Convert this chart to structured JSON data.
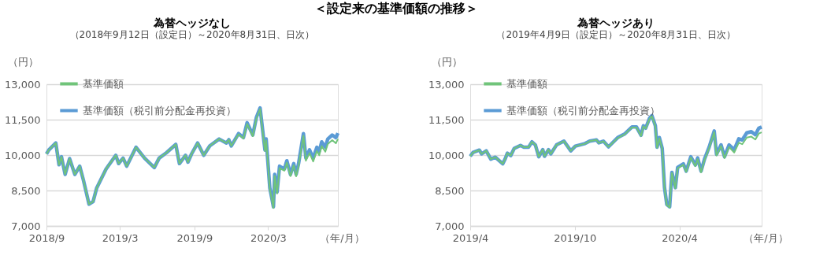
{
  "chart_data": [
    {
      "type": "line",
      "title": "為替ヘッジなし",
      "subtitle": "（2018年9月12日（設定日）～2020年8月31日、日次）",
      "ylabel": "（円）",
      "xlabel": "（年/月）",
      "annotations": [
        "＜設定来の基準価額の推移＞"
      ],
      "x": [
        "2018-09-12",
        "2018-09-18",
        "2018-10-05",
        "2018-10-13",
        "2018-10-19",
        "2018-10-28",
        "2018-11-08",
        "2018-11-21",
        "2018-12-03",
        "2018-12-12",
        "2018-12-26",
        "2019-01-05",
        "2019-01-14",
        "2019-02-06",
        "2019-03-02",
        "2019-03-09",
        "2019-03-20",
        "2019-03-29",
        "2019-04-21",
        "2019-05-12",
        "2019-06-05",
        "2019-06-17",
        "2019-07-05",
        "2019-07-28",
        "2019-08-06",
        "2019-08-21",
        "2019-08-27",
        "2019-09-05",
        "2019-09-20",
        "2019-10-05",
        "2019-10-20",
        "2019-11-12",
        "2019-11-30",
        "2019-12-06",
        "2019-12-12",
        "2019-12-30",
        "2020-01-11",
        "2020-01-20",
        "2020-02-03",
        "2020-02-12",
        "2020-02-21",
        "2020-03-04",
        "2020-03-07",
        "2020-03-16",
        "2020-03-25",
        "2020-03-28",
        "2020-04-03",
        "2020-04-09",
        "2020-04-21",
        "2020-04-27",
        "2020-05-06",
        "2020-05-14",
        "2020-05-20",
        "2020-05-26",
        "2020-06-07",
        "2020-06-13",
        "2020-06-22",
        "2020-07-01",
        "2020-07-10",
        "2020-07-16",
        "2020-07-22",
        "2020-07-31",
        "2020-08-06",
        "2020-08-17",
        "2020-08-26",
        "2020-08-31"
      ],
      "series": [
        {
          "name": "基準価額",
          "color": "#70c47a",
          "values": [
            10050,
            10220,
            10510,
            9590,
            9930,
            9180,
            9850,
            9180,
            9530,
            8950,
            7920,
            8030,
            8610,
            9410,
            9990,
            9640,
            9870,
            9530,
            10330,
            9870,
            9470,
            9870,
            10100,
            10450,
            9640,
            9990,
            9700,
            10050,
            10510,
            9990,
            10390,
            10680,
            10510,
            10650,
            10390,
            10880,
            10700,
            11320,
            10800,
            11550,
            11950,
            10170,
            10620,
            8560,
            7760,
            9120,
            8370,
            9450,
            9340,
            9680,
            9110,
            9570,
            9100,
            9550,
            10820,
            9760,
            10090,
            9730,
            10170,
            9990,
            10380,
            10140,
            10470,
            10630,
            10500,
            10680
          ]
        },
        {
          "name": "基準価額（税引前分配金再投資）",
          "color": "#5b9bd5",
          "values": [
            10050,
            10220,
            10510,
            9590,
            9930,
            9180,
            9850,
            9180,
            9530,
            8950,
            7920,
            8030,
            8610,
            9410,
            9990,
            9640,
            9870,
            9530,
            10330,
            9870,
            9470,
            9870,
            10100,
            10450,
            9640,
            9990,
            9700,
            10050,
            10510,
            9990,
            10390,
            10680,
            10510,
            10650,
            10390,
            10910,
            10740,
            11370,
            10850,
            11600,
            12000,
            10220,
            10680,
            8610,
            7810,
            9180,
            8440,
            9530,
            9410,
            9760,
            9180,
            9640,
            9180,
            9640,
            10910,
            9870,
            10220,
            9870,
            10330,
            10160,
            10560,
            10330,
            10680,
            10850,
            10740,
            10930
          ]
        }
      ],
      "xlim": [
        "2018-09-12",
        "2020-08-31"
      ],
      "xticks": [
        {
          "value": "2018-09-12",
          "label": "2018/9"
        },
        {
          "value": "2019-03-12",
          "label": "2019/3"
        },
        {
          "value": "2019-09-12",
          "label": "2019/9"
        },
        {
          "value": "2020-03-12",
          "label": "2020/3"
        }
      ],
      "ylim": [
        7000,
        13000
      ],
      "yticks": [
        {
          "value": 7000,
          "label": "7,000"
        },
        {
          "value": 8500,
          "label": "8,500"
        },
        {
          "value": 10000,
          "label": "10,000"
        },
        {
          "value": 11500,
          "label": "11,500"
        },
        {
          "value": 13000,
          "label": "13,000"
        }
      ],
      "grid": "y",
      "legend": "top left"
    },
    {
      "type": "line",
      "title": "為替ヘッジあり",
      "subtitle": "（2019年4月9日（設定日）～2020年8月31日、日次）",
      "ylabel": "（円）",
      "xlabel": "（年/月）",
      "x": [
        "2019-04-09",
        "2019-04-14",
        "2019-04-25",
        "2019-04-29",
        "2019-05-07",
        "2019-05-15",
        "2019-05-23",
        "2019-06-05",
        "2019-06-09",
        "2019-06-13",
        "2019-06-19",
        "2019-06-25",
        "2019-07-06",
        "2019-07-12",
        "2019-07-20",
        "2019-07-26",
        "2019-08-01",
        "2019-08-07",
        "2019-08-14",
        "2019-08-17",
        "2019-08-24",
        "2019-08-28",
        "2019-09-07",
        "2019-09-20",
        "2019-10-02",
        "2019-10-10",
        "2019-10-27",
        "2019-11-04",
        "2019-11-16",
        "2019-11-20",
        "2019-11-28",
        "2019-12-07",
        "2019-12-23",
        "2020-01-04",
        "2020-01-17",
        "2020-01-25",
        "2020-02-02",
        "2020-02-06",
        "2020-02-10",
        "2020-02-17",
        "2020-02-21",
        "2020-02-27",
        "2020-03-01",
        "2020-03-05",
        "2020-03-10",
        "2020-03-14",
        "2020-03-18",
        "2020-03-23",
        "2020-03-27",
        "2020-04-02",
        "2020-04-06",
        "2020-04-16",
        "2020-04-21",
        "2020-04-29",
        "2020-05-07",
        "2020-05-11",
        "2020-05-17",
        "2020-05-23",
        "2020-05-31",
        "2020-06-09",
        "2020-06-13",
        "2020-06-21",
        "2020-06-27",
        "2020-07-05",
        "2020-07-14",
        "2020-07-22",
        "2020-07-28",
        "2020-08-05",
        "2020-08-13",
        "2020-08-20",
        "2020-08-26",
        "2020-08-31"
      ],
      "series": [
        {
          "name": "基準価額",
          "color": "#70c47a",
          "values": [
            9950,
            10110,
            10210,
            10050,
            10180,
            9830,
            9910,
            9630,
            9830,
            10080,
            9980,
            10280,
            10410,
            10330,
            10330,
            10560,
            10430,
            9930,
            10230,
            9950,
            10230,
            10050,
            10430,
            10590,
            10180,
            10380,
            10480,
            10590,
            10640,
            10510,
            10590,
            10350,
            10720,
            10870,
            11170,
            11170,
            10810,
            11220,
            11120,
            11540,
            11640,
            11220,
            10310,
            10710,
            10260,
            8590,
            7880,
            7780,
            9240,
            8590,
            9440,
            9590,
            9290,
            9890,
            9530,
            9830,
            9270,
            9780,
            10290,
            10970,
            9980,
            10380,
            9870,
            10340,
            10110,
            10520,
            10460,
            10740,
            10780,
            10660,
            10910,
            10960
          ]
        },
        {
          "name": "基準価額（税引前分配金再投資）",
          "color": "#5b9bd5",
          "values": [
            9950,
            10110,
            10210,
            10050,
            10180,
            9830,
            9910,
            9630,
            9830,
            10080,
            9980,
            10280,
            10410,
            10330,
            10330,
            10560,
            10430,
            9930,
            10230,
            9950,
            10230,
            10050,
            10430,
            10590,
            10180,
            10380,
            10490,
            10590,
            10640,
            10520,
            10590,
            10350,
            10740,
            10890,
            11190,
            11190,
            10840,
            11240,
            11140,
            11570,
            11670,
            11240,
            10330,
            10740,
            10280,
            8620,
            7910,
            7810,
            9270,
            8620,
            9480,
            9630,
            9320,
            9930,
            9580,
            9880,
            9320,
            9830,
            10330,
            11020,
            10030,
            10430,
            9930,
            10430,
            10230,
            10690,
            10640,
            10940,
            10990,
            10860,
            11140,
            11190
          ]
        }
      ],
      "xlim": [
        "2019-04-09",
        "2020-08-31"
      ],
      "xticks": [
        {
          "value": "2019-04-09",
          "label": "2019/4"
        },
        {
          "value": "2019-10-09",
          "label": "2019/10"
        },
        {
          "value": "2020-04-09",
          "label": "2020/4"
        }
      ],
      "ylim": [
        7000,
        13000
      ],
      "yticks": [
        {
          "value": 7000,
          "label": "7,000"
        },
        {
          "value": 8500,
          "label": "8,500"
        },
        {
          "value": 10000,
          "label": "10,000"
        },
        {
          "value": 11500,
          "label": "11,500"
        },
        {
          "value": 13000,
          "label": "13,000"
        }
      ],
      "grid": "y",
      "legend": "top left"
    }
  ]
}
